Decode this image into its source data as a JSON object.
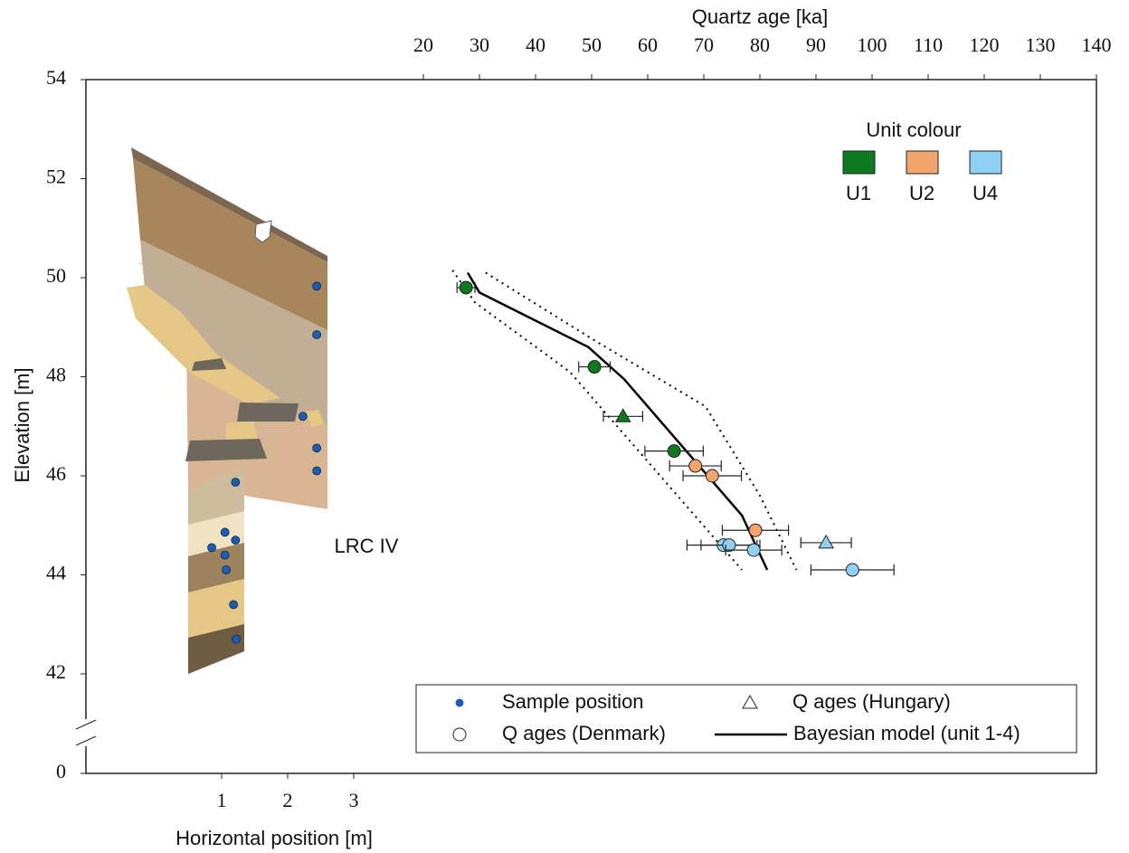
{
  "chart_data": {
    "type": "scatter",
    "x_label": "Quartz age [ka]",
    "y_label": "Elevation [m]",
    "x2_label": "Horizontal position [m]",
    "annotation": "LRC IV",
    "xlim": [
      20,
      140
    ],
    "xticks": [
      20,
      30,
      40,
      50,
      60,
      70,
      80,
      90,
      100,
      110,
      120,
      130,
      140
    ],
    "ylim": [
      42,
      54
    ],
    "yticks": [
      0,
      42,
      44,
      46,
      48,
      50,
      52,
      54
    ],
    "y_axis_break": true,
    "x2lim": [
      0,
      3
    ],
    "x2ticks": [
      1,
      2,
      3
    ],
    "unit_legend": {
      "title": "Unit colour",
      "units": [
        {
          "name": "U1",
          "color": "#0e7a1f"
        },
        {
          "name": "U2",
          "color": "#f2a46c"
        },
        {
          "name": "U4",
          "color": "#8fd0f4"
        }
      ]
    },
    "legend": [
      "Sample position",
      "Q ages (Hungary)",
      "Q ages (Denmark)",
      "Bayesian model (unit 1-4)"
    ],
    "series": [
      {
        "unit": 0,
        "marker": "circle",
        "x": [
          27.6,
          50.5,
          64.7
        ],
        "y": [
          49.8,
          48.2,
          46.5
        ],
        "xerr": [
          1.6,
          2.8,
          5.2
        ]
      },
      {
        "unit": 0,
        "marker": "triangle",
        "x": [
          55.6
        ],
        "y": [
          47.2
        ],
        "xerr": [
          3.5
        ]
      },
      {
        "unit": 1,
        "marker": "circle",
        "x": [
          68.5,
          71.5,
          79.2
        ],
        "y": [
          46.2,
          46.0,
          44.9
        ],
        "xerr": [
          4.6,
          5.2,
          5.9
        ]
      },
      {
        "unit": 2,
        "marker": "circle",
        "x": [
          73.5,
          74.5,
          78.9,
          96.5
        ],
        "y": [
          44.6,
          44.6,
          44.5,
          44.1
        ],
        "xerr": [
          6.5,
          5,
          5,
          7.4
        ]
      },
      {
        "unit": 2,
        "marker": "triangle",
        "x": [
          91.8
        ],
        "y": [
          44.65
        ],
        "xerr": [
          4.5
        ]
      }
    ],
    "model": {
      "x": [
        27.9,
        30,
        49.4,
        55.8,
        76.8,
        81.3
      ],
      "y": [
        50.1,
        49.7,
        48.6,
        47.95,
        45.2,
        44.1
      ]
    },
    "model_lower": {
      "x": [
        25.2,
        29.2,
        46.1,
        76.8
      ],
      "y": [
        50.15,
        49.5,
        48.1,
        44.1
      ]
    },
    "model_upper": {
      "x": [
        31.1,
        51,
        70.3,
        80,
        86.5
      ],
      "y": [
        50.1,
        48.7,
        47.4,
        45.6,
        44.1
      ]
    },
    "samples": {
      "color": "#1d5cae",
      "x": [
        2.44,
        2.44,
        2.23,
        2.44,
        2.44,
        1.21,
        1.05,
        1.21,
        0.85,
        1.05,
        1.07,
        1.18,
        1.22
      ],
      "y": [
        49.83,
        48.85,
        47.2,
        46.56,
        46.1,
        45.87,
        44.86,
        44.7,
        44.55,
        44.4,
        44.1,
        43.4,
        42.7
      ]
    }
  }
}
